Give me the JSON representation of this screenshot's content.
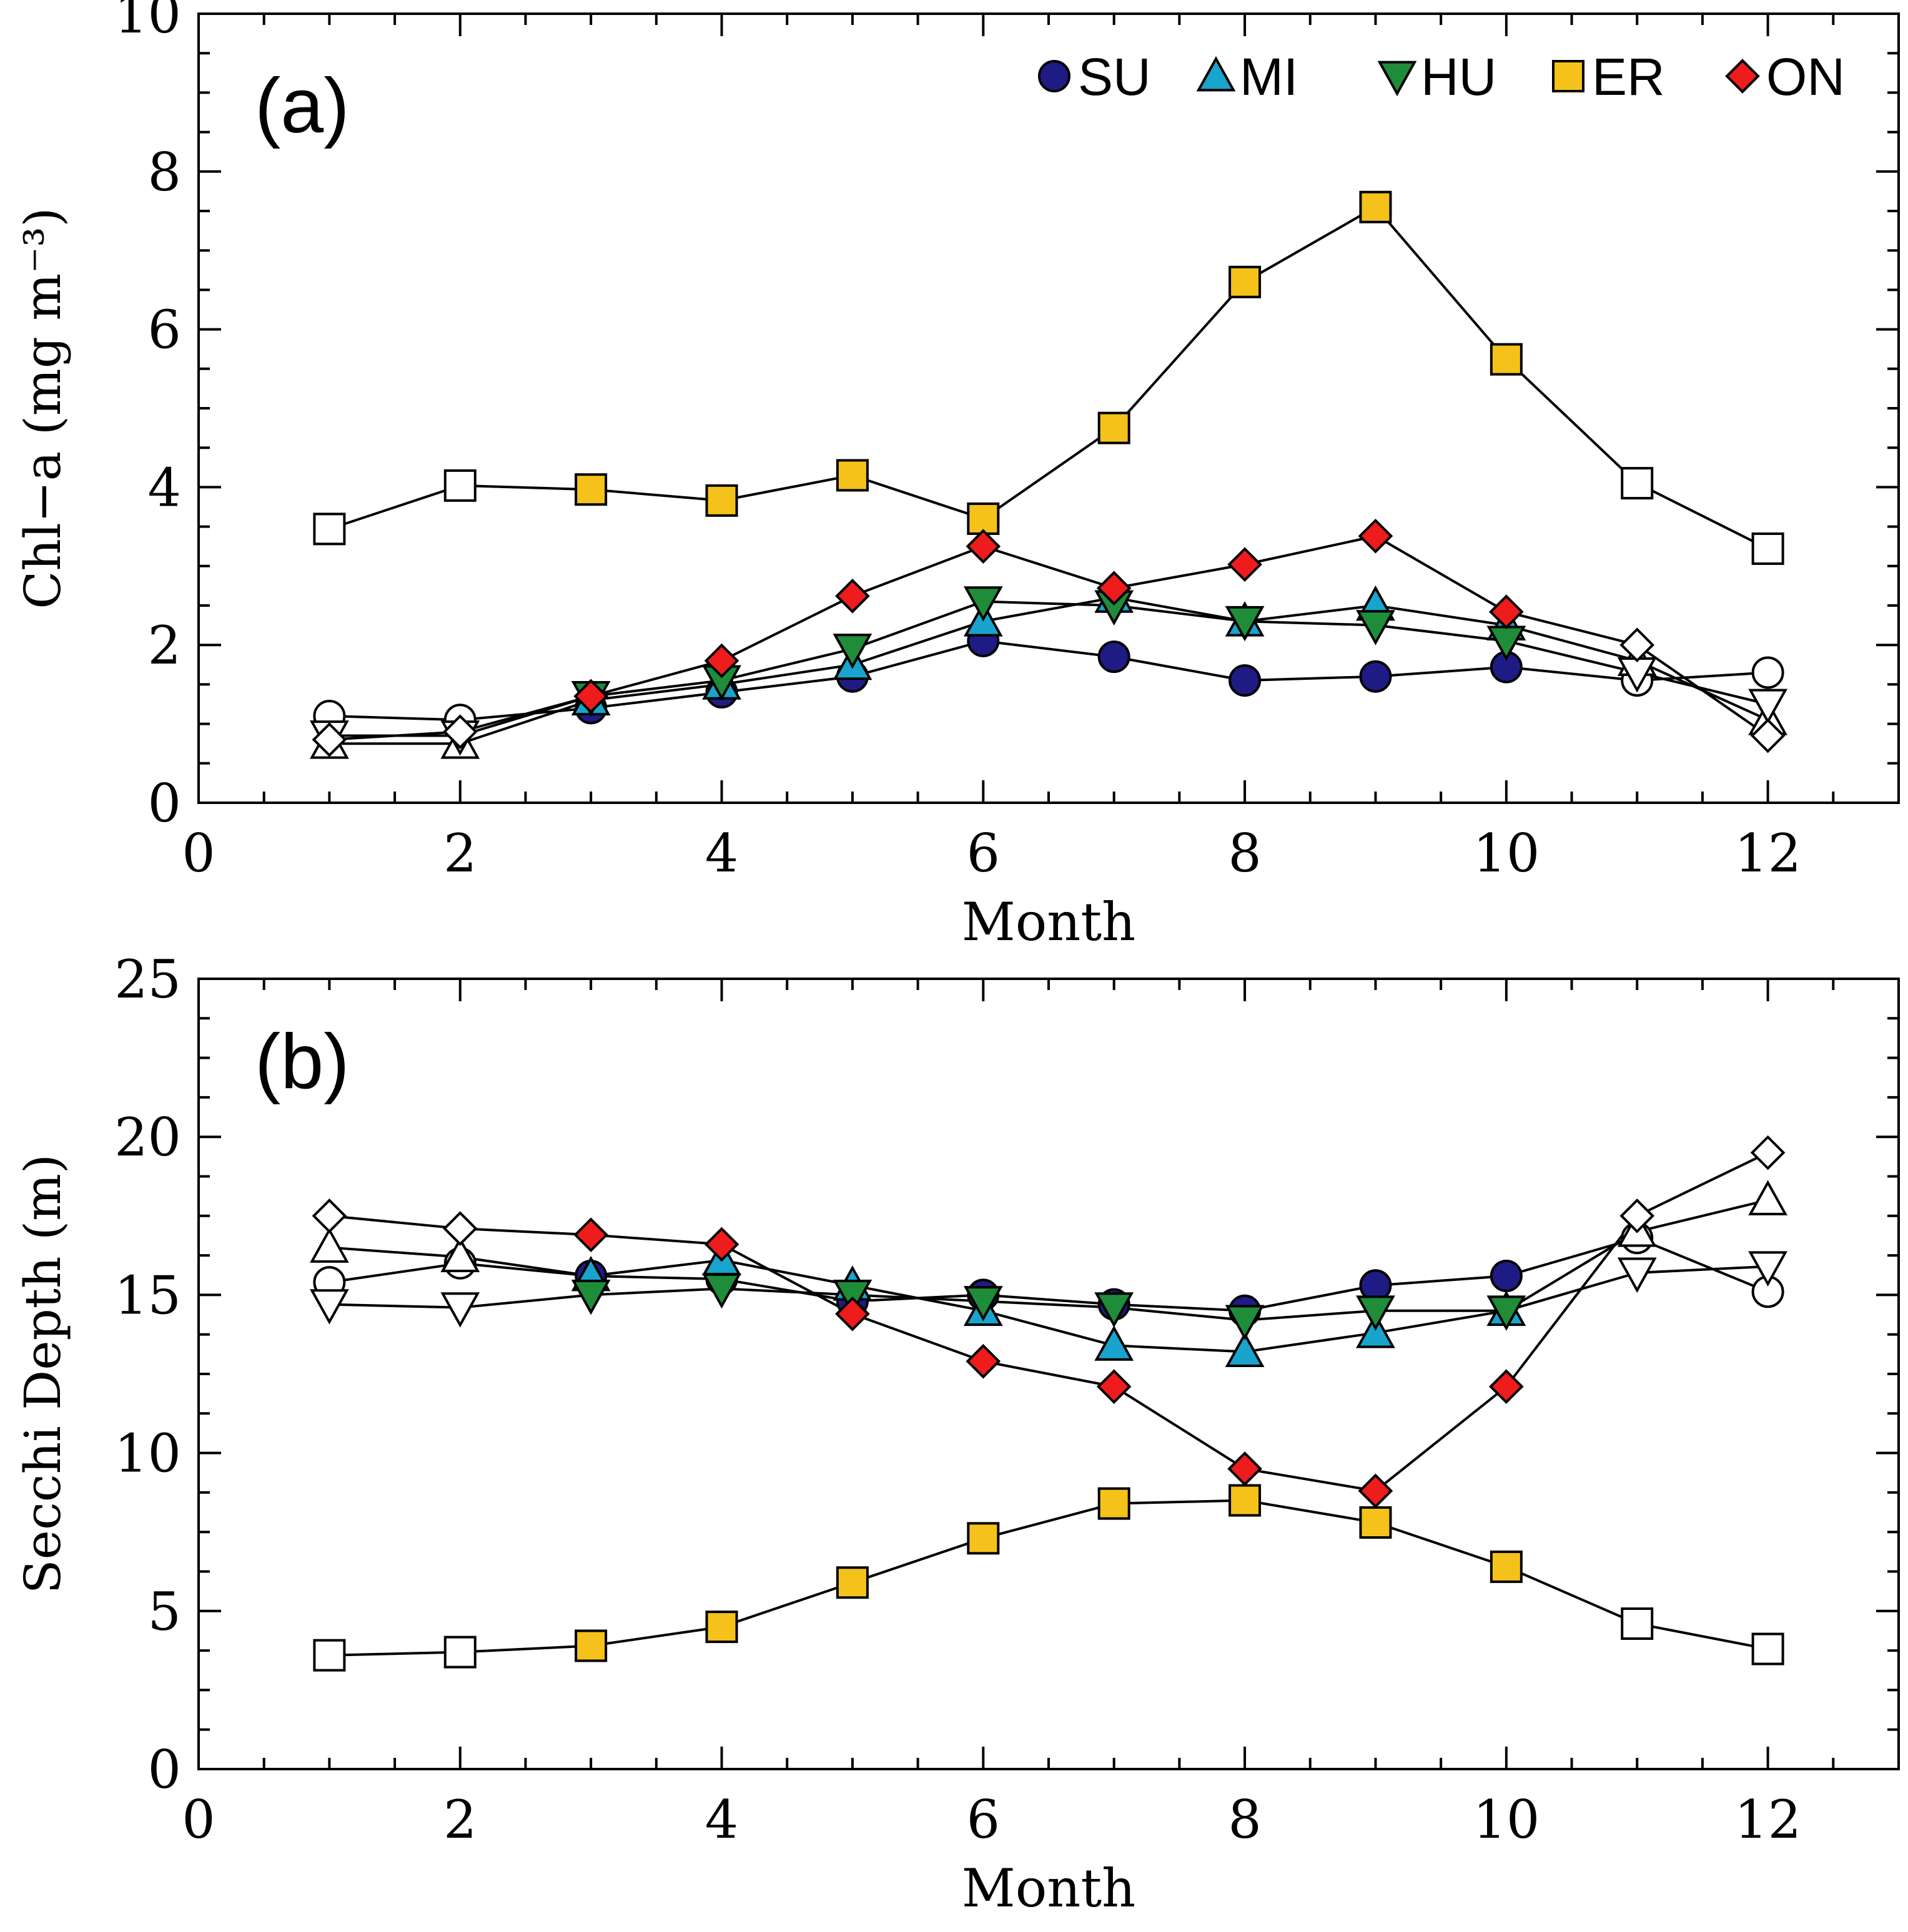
{
  "colors": {
    "SU": "#1f1b84",
    "MI": "#1aa3cc",
    "HU": "#1f8c3a",
    "ER": "#f5c21b",
    "ON": "#ee1c1c",
    "open": "#ffffff",
    "stroke": "#000000"
  },
  "chart_data": [
    {
      "panel": "(a)",
      "type": "line",
      "xlabel": "Month",
      "ylabel": "Chl−a (mg m⁻³)",
      "xlim": [
        0,
        13
      ],
      "ylim": [
        0,
        10
      ],
      "xticks": [
        0,
        2,
        4,
        6,
        8,
        10,
        12
      ],
      "yticks": [
        0,
        2,
        4,
        6,
        8,
        10
      ],
      "legend": "top-right",
      "filled_months": [
        3,
        4,
        5,
        6,
        7,
        8,
        9,
        10
      ],
      "x": [
        1,
        2,
        3,
        4,
        5,
        6,
        7,
        8,
        9,
        10,
        11,
        12
      ],
      "series": [
        {
          "name": "SU",
          "marker": "circle",
          "values": [
            1.1,
            1.05,
            1.2,
            1.4,
            1.6,
            2.05,
            1.85,
            1.55,
            1.6,
            1.72,
            1.55,
            1.65
          ]
        },
        {
          "name": "MI",
          "marker": "triangle-up",
          "values": [
            0.75,
            0.75,
            1.3,
            1.5,
            1.75,
            2.3,
            2.6,
            2.3,
            2.5,
            2.25,
            1.8,
            1.05
          ]
        },
        {
          "name": "HU",
          "marker": "triangle-down",
          "values": [
            0.85,
            0.85,
            1.35,
            1.55,
            1.95,
            2.55,
            2.5,
            2.3,
            2.25,
            2.05,
            1.65,
            1.25
          ]
        },
        {
          "name": "ER",
          "marker": "square",
          "values": [
            3.47,
            4.02,
            3.97,
            3.83,
            4.15,
            3.6,
            4.75,
            6.6,
            7.55,
            5.62,
            4.05,
            3.22
          ]
        },
        {
          "name": "ON",
          "marker": "diamond",
          "values": [
            0.8,
            0.9,
            1.35,
            1.8,
            2.62,
            3.25,
            2.72,
            3.02,
            3.38,
            2.42,
            2.0,
            0.85
          ]
        }
      ]
    },
    {
      "panel": "(b)",
      "type": "line",
      "xlabel": "Month",
      "ylabel": "Secchi Depth (m)",
      "xlim": [
        0,
        13
      ],
      "ylim": [
        0,
        25
      ],
      "xticks": [
        0,
        2,
        4,
        6,
        8,
        10,
        12
      ],
      "yticks": [
        0,
        5,
        10,
        15,
        20,
        25
      ],
      "filled_months": [
        3,
        4,
        5,
        6,
        7,
        8,
        9,
        10
      ],
      "x": [
        1,
        2,
        3,
        4,
        5,
        6,
        7,
        8,
        9,
        10,
        11,
        12
      ],
      "series": [
        {
          "name": "SU",
          "marker": "circle",
          "values": [
            15.4,
            16.0,
            15.6,
            15.5,
            14.8,
            15.0,
            14.7,
            14.5,
            15.3,
            15.6,
            16.8,
            15.1
          ]
        },
        {
          "name": "MI",
          "marker": "triangle-up",
          "values": [
            16.5,
            16.2,
            15.6,
            16.1,
            15.3,
            14.5,
            13.4,
            13.2,
            13.8,
            14.5,
            17.0,
            18.0
          ]
        },
        {
          "name": "HU",
          "marker": "triangle-down",
          "values": [
            14.7,
            14.6,
            15.0,
            15.2,
            15.0,
            14.8,
            14.6,
            14.2,
            14.5,
            14.5,
            15.7,
            15.9
          ]
        },
        {
          "name": "ER",
          "marker": "square",
          "values": [
            3.6,
            3.7,
            3.9,
            4.5,
            5.9,
            7.3,
            8.4,
            8.5,
            7.8,
            6.4,
            4.6,
            3.8
          ]
        },
        {
          "name": "ON",
          "marker": "diamond",
          "values": [
            17.5,
            17.1,
            16.9,
            16.6,
            14.4,
            12.9,
            12.1,
            9.5,
            8.8,
            12.1,
            17.5,
            19.5
          ]
        }
      ]
    }
  ]
}
